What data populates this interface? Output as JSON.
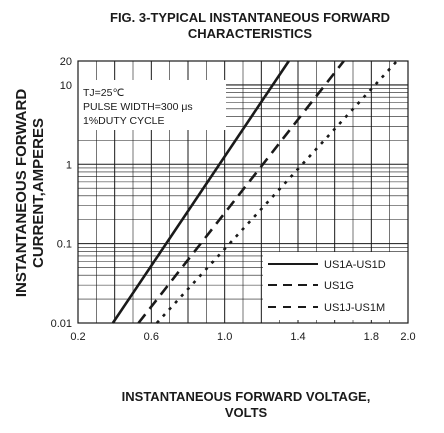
{
  "chart_data": {
    "type": "line",
    "title_line1": "FIG. 3-TYPICAL INSTANTANEOUS FORWARD",
    "title_line2": "CHARACTERISTICS",
    "ylabel_line1": "INSTANTANEOUS FORWARD",
    "ylabel_line2": "CURRENT,AMPERES",
    "xlabel_line1": "INSTANTANEOUS FORWARD VOLTAGE,",
    "xlabel_line2": "VOLTS",
    "xlim": [
      0.2,
      2.0
    ],
    "ylim": [
      0.01,
      20
    ],
    "yscale": "log",
    "grid": true,
    "x_ticks": [
      0.2,
      0.6,
      1.0,
      1.4,
      1.8,
      2.0
    ],
    "x_tick_labels": [
      "0.2",
      "0.6",
      "1.0",
      "1.4",
      "1.8",
      "2.0"
    ],
    "y_ticks": [
      0.01,
      0.1,
      1,
      10,
      20
    ],
    "y_tick_labels": [
      "0.01",
      "0.1",
      "1",
      "10",
      "20"
    ],
    "conditions": [
      "TJ=25℃",
      "PULSE WIDTH=300 μs",
      "1%DUTY CYCLE"
    ],
    "legend_position": "bottom-right",
    "series": [
      {
        "name": "US1A-US1D",
        "style": "solid",
        "x": [
          0.39,
          1.35
        ],
        "y": [
          0.01,
          20
        ]
      },
      {
        "name": "US1G",
        "style": "dashed",
        "x": [
          0.53,
          1.65
        ],
        "y": [
          0.01,
          20
        ]
      },
      {
        "name": "US1J-US1M",
        "style": "dotted",
        "x": [
          0.63,
          1.94
        ],
        "y": [
          0.01,
          20
        ]
      }
    ]
  }
}
